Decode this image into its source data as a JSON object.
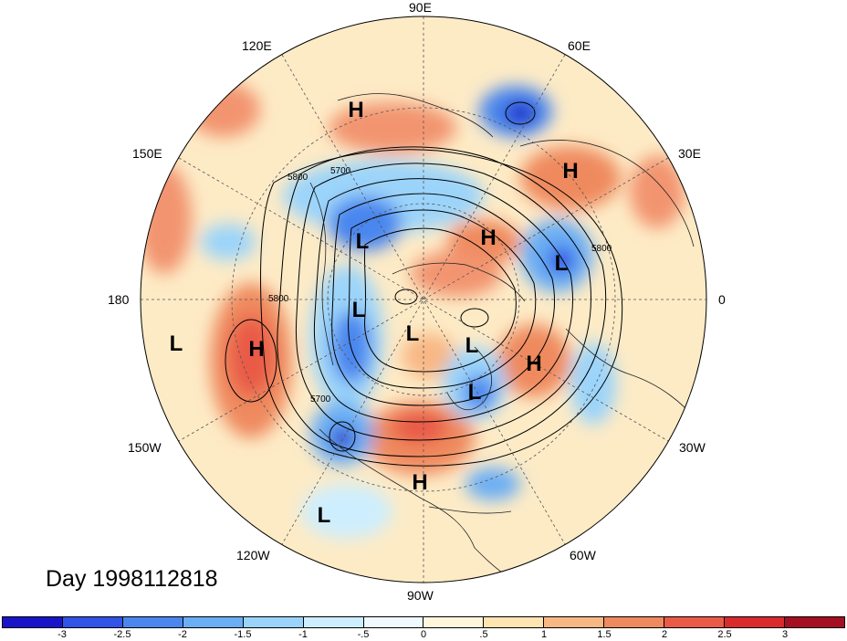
{
  "day_label": "Day 1998112818",
  "longitude_labels": [
    {
      "text": "90E",
      "name": "lon-90e"
    },
    {
      "text": "60E",
      "name": "lon-60e"
    },
    {
      "text": "30E",
      "name": "lon-30e"
    },
    {
      "text": "0",
      "name": "lon-0"
    },
    {
      "text": "30W",
      "name": "lon-30w"
    },
    {
      "text": "60W",
      "name": "lon-60w"
    },
    {
      "text": "90W",
      "name": "lon-90w"
    },
    {
      "text": "120W",
      "name": "lon-120w"
    },
    {
      "text": "150W",
      "name": "lon-150w"
    },
    {
      "text": "180",
      "name": "lon-180"
    },
    {
      "text": "150E",
      "name": "lon-150e"
    },
    {
      "text": "120E",
      "name": "lon-120e"
    }
  ],
  "pressure_markers": [
    {
      "type": "H",
      "name": "high-marker-north"
    },
    {
      "type": "H",
      "name": "high-marker-europe"
    },
    {
      "type": "H",
      "name": "high-marker-arctic"
    },
    {
      "type": "L",
      "name": "low-marker-siberia"
    },
    {
      "type": "L",
      "name": "low-marker-scandinavia"
    },
    {
      "type": "L",
      "name": "low-marker-alaska"
    },
    {
      "type": "L",
      "name": "low-marker-pole"
    },
    {
      "type": "L",
      "name": "low-marker-greenland"
    },
    {
      "type": "H",
      "name": "high-marker-atlantic"
    },
    {
      "type": "L",
      "name": "low-marker-pacific"
    },
    {
      "type": "H",
      "name": "high-marker-pacific"
    },
    {
      "type": "L",
      "name": "low-marker-labrador"
    },
    {
      "type": "H",
      "name": "high-marker-gulf"
    },
    {
      "type": "L",
      "name": "low-marker-east-pacific"
    }
  ],
  "contour_labels": [
    "5800",
    "5700",
    "5800",
    "5800",
    "5700"
  ],
  "colorbar": {
    "colors": [
      "#1a14c8",
      "#2f54e6",
      "#4a86ee",
      "#6aaef4",
      "#9bd4fa",
      "#cdeefe",
      "#eefaff",
      "#fff6dc",
      "#fde4b0",
      "#f8b884",
      "#ef8a5e",
      "#e95a47",
      "#d92a2e",
      "#a50f22"
    ],
    "ticks": [
      "-3",
      "-2.5",
      "-2",
      "-1.5",
      "-1",
      "-.5",
      "0",
      ".5",
      "1",
      "1.5",
      "2",
      "2.5",
      "3"
    ]
  }
}
